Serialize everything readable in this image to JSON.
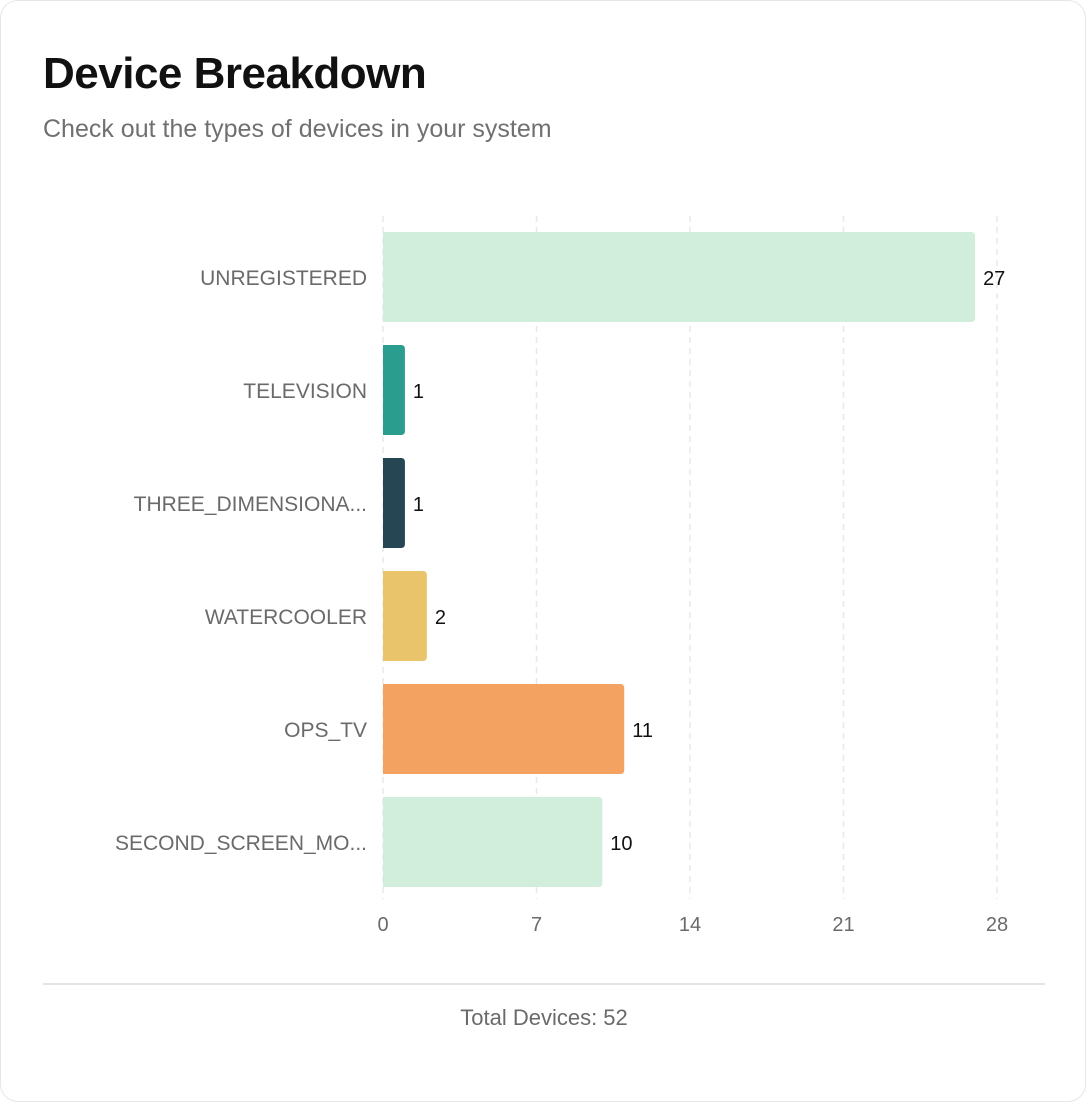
{
  "header": {
    "title": "Device Breakdown",
    "subtitle": "Check out the types of devices in your system"
  },
  "chart_data": {
    "type": "bar",
    "orientation": "horizontal",
    "categories": [
      "UNREGISTERED",
      "TELEVISION",
      "THREE_DIMENSIONA...",
      "WATERCOOLER",
      "OPS_TV",
      "SECOND_SCREEN_MO..."
    ],
    "values": [
      27,
      1,
      1,
      2,
      11,
      10
    ],
    "colors": [
      "#d1eedc",
      "#2a9d8f",
      "#264653",
      "#e9c46a",
      "#f4a261",
      "#d1eedc"
    ],
    "xlim": [
      0,
      28
    ],
    "xticks": [
      "0",
      "7",
      "14",
      "21",
      "28"
    ],
    "grid": true,
    "data_labels": true
  },
  "footer": {
    "total_label": "Total Devices: 52"
  }
}
